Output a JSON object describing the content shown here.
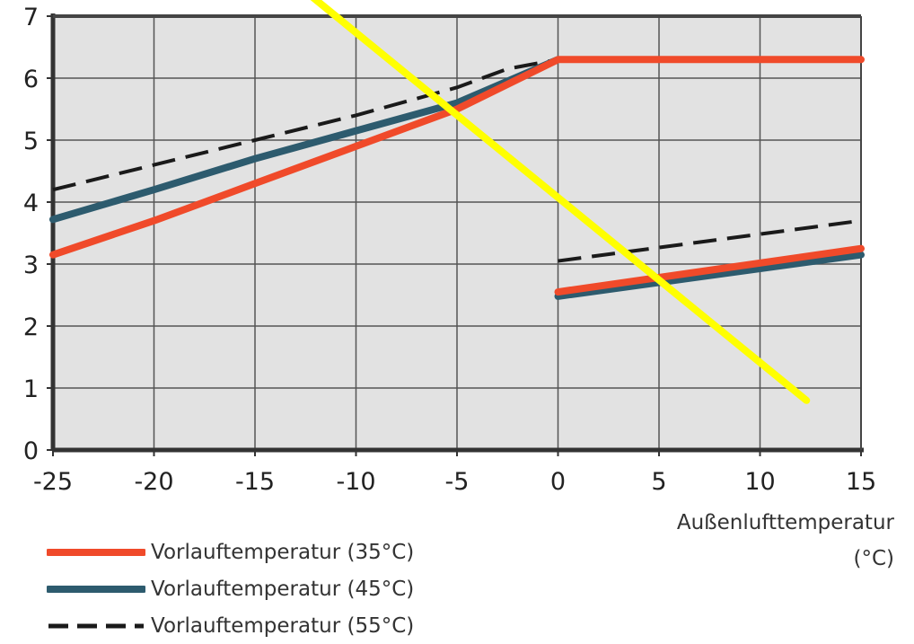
{
  "chart_data": {
    "type": "line",
    "xlabel": "Außenlufttemperatur",
    "xunit": "(°C)",
    "xlim": [
      -25,
      15
    ],
    "ylim": [
      0,
      7
    ],
    "x_ticks": [
      -25,
      -20,
      -15,
      -10,
      -5,
      0,
      5,
      10,
      15
    ],
    "y_ticks": [
      0,
      1,
      2,
      3,
      4,
      5,
      6,
      7
    ],
    "grid": true,
    "legend_position": "bottom-left",
    "series": [
      {
        "name": "Vorlauftemperatur (35°C)",
        "color": "#f04a2a",
        "style": "solid",
        "segments": [
          [
            [
              -25,
              3.15
            ],
            [
              -20,
              3.7
            ],
            [
              -15,
              4.3
            ],
            [
              -10,
              4.9
            ],
            [
              -5,
              5.5
            ],
            [
              0,
              6.3
            ],
            [
              15,
              6.3
            ]
          ],
          [
            [
              0,
              2.55
            ],
            [
              15,
              3.25
            ]
          ]
        ]
      },
      {
        "name": "Vorlauftemperatur (45°C)",
        "color": "#2d5b6e",
        "style": "solid",
        "segments": [
          [
            [
              -25,
              3.72
            ],
            [
              -20,
              4.2
            ],
            [
              -15,
              4.7
            ],
            [
              -10,
              5.15
            ],
            [
              -5,
              5.6
            ],
            [
              0,
              6.3
            ]
          ],
          [
            [
              0,
              2.48
            ],
            [
              15,
              3.15
            ]
          ]
        ]
      },
      {
        "name": "Vorlauftemperatur (55°C)",
        "color": "#1a1a1a",
        "style": "dashed",
        "segments": [
          [
            [
              -25,
              4.2
            ],
            [
              -20,
              4.6
            ],
            [
              -15,
              5.0
            ],
            [
              -10,
              5.4
            ],
            [
              -5,
              5.85
            ],
            [
              -2.5,
              6.15
            ],
            [
              0,
              6.3
            ]
          ],
          [
            [
              0,
              3.05
            ],
            [
              15,
              3.7
            ]
          ]
        ]
      }
    ],
    "annotations": [
      {
        "type": "overlay-line",
        "color": "#ffff00",
        "points": [
          [
            -12.5,
            7.4
          ],
          [
            12.3,
            0.8
          ]
        ]
      }
    ]
  }
}
